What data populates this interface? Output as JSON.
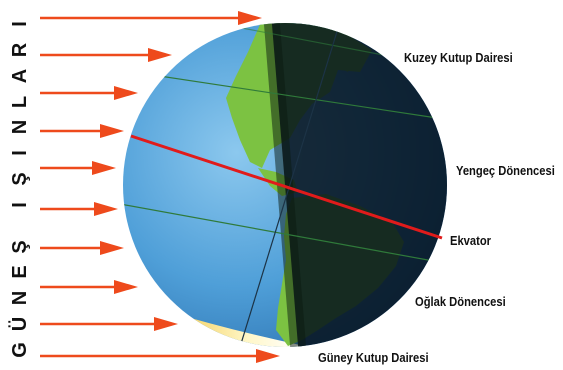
{
  "title": "GÜNEŞ IŞINLARI",
  "labels": {
    "arctic_circle": "Kuzey Kutup Dairesi",
    "tropic_cancer": "Yengeç Dönencesi",
    "equator": "Ekvator",
    "tropic_capricorn": "Oğlak Dönencesi",
    "antarctic_circle": "Güney Kutup Dairesi"
  },
  "colors": {
    "ray": "#ee4a1c",
    "equator": "#e01b1b",
    "ocean_lit": "#4f9fd8",
    "ocean_dark": "#0d1e2c",
    "land_lit": "#7cc242",
    "land_dark": "#142a18",
    "north_polar": "#2f5fc8",
    "south_polar": "#f5e27a",
    "parallel": "#2f7a3a"
  },
  "icons": [
    "arrow-right-icon",
    "globe-icon"
  ]
}
